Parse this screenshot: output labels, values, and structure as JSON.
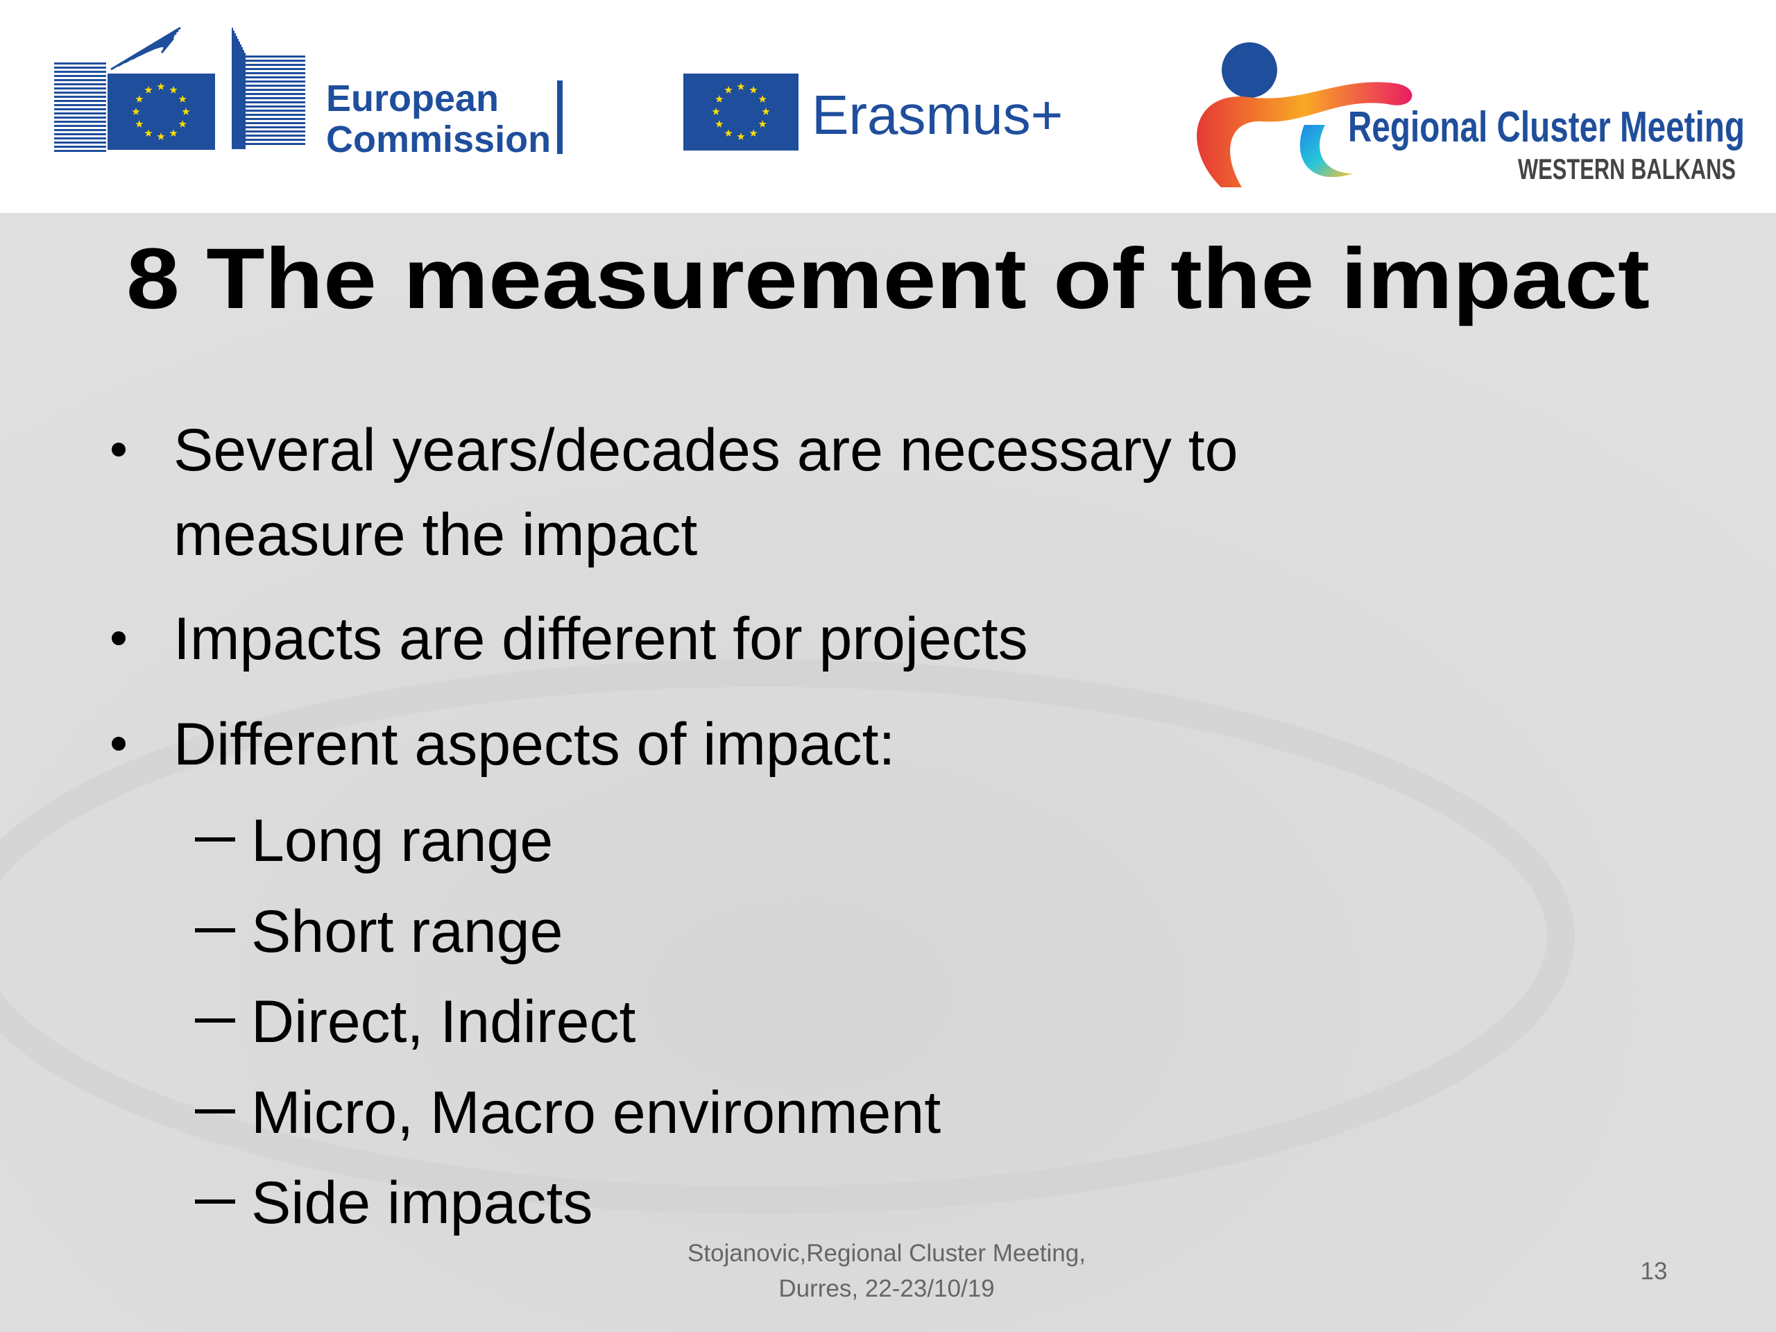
{
  "header": {
    "ec_line1": "European",
    "ec_line2": "Commission",
    "erasmus": "Erasmus+",
    "rcm_title": "Regional Cluster Meeting",
    "rcm_subtitle": "WESTERN BALKANS"
  },
  "slide": {
    "title": "8 The measurement of the impact",
    "bullets": [
      "Several years/decades are necessary to",
      "measure the impact",
      "Impacts are different for projects",
      "Different aspects of impact:"
    ],
    "sub_bullets": [
      "Long range",
      "Short range",
      "Direct, Indirect",
      "Micro, Macro environment",
      "Side impacts"
    ]
  },
  "footer": {
    "line1": "Stojanovic,Regional Cluster Meeting,",
    "line2": "Durres, 22-23/10/19",
    "page_number": "13"
  }
}
